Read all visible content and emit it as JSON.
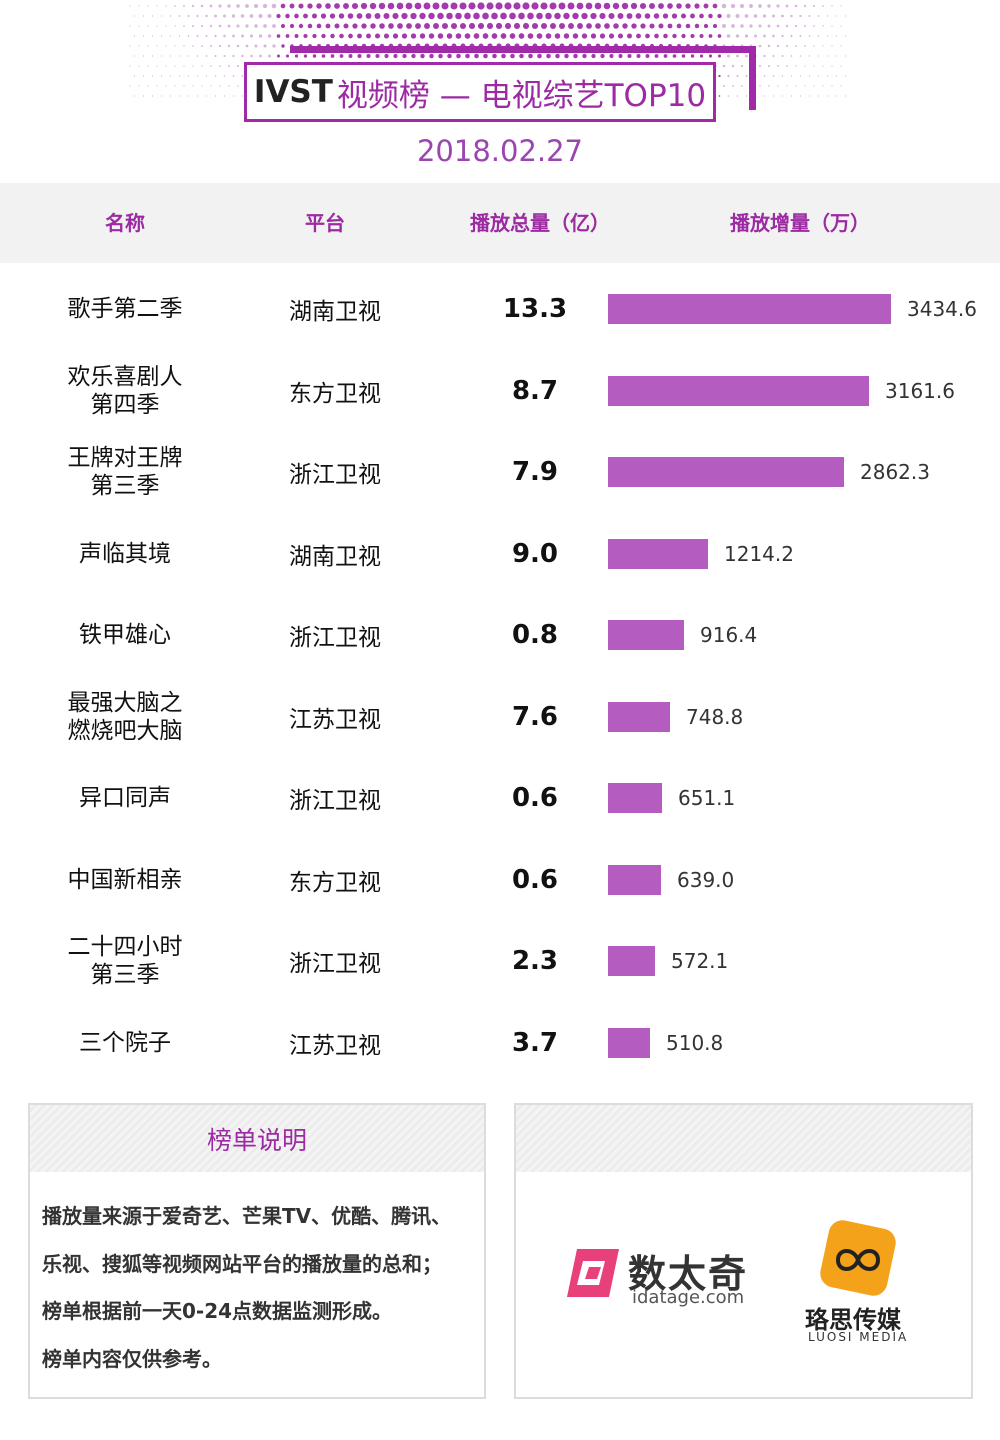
{
  "header": {
    "brand": "IVST",
    "title": "视频榜 — 电视综艺TOP10",
    "date": "2018.02.27"
  },
  "columns": {
    "name": "名称",
    "platform": "平台",
    "total": "播放总量（亿）",
    "increase": "播放增量（万）"
  },
  "chart_data": {
    "type": "bar",
    "title": "",
    "xlabel": "",
    "ylabel": "",
    "categories": [
      "歌手第二季",
      "欢乐喜剧人第四季",
      "王牌对王牌第三季",
      "声临其境",
      "铁甲雄心",
      "最强大脑之燃烧吧大脑",
      "异口同声",
      "中国新相亲",
      "二十四小时第三季",
      "三个院子"
    ],
    "rows": [
      {
        "name": "歌手第二季",
        "platform": "湖南卫视",
        "total": "13.3",
        "increase": 3434.6,
        "increase_label": "3434.6"
      },
      {
        "name": "欢乐喜剧人第四季",
        "platform": "东方卫视",
        "total": "8.7",
        "increase": 3161.6,
        "increase_label": "3161.6"
      },
      {
        "name": "王牌对王牌第三季",
        "platform": "浙江卫视",
        "total": "7.9",
        "increase": 2862.3,
        "increase_label": "2862.3"
      },
      {
        "name": "声临其境",
        "platform": "湖南卫视",
        "total": "9.0",
        "increase": 1214.2,
        "increase_label": "1214.2"
      },
      {
        "name": "铁甲雄心",
        "platform": "浙江卫视",
        "total": "0.8",
        "increase": 916.4,
        "increase_label": "916.4"
      },
      {
        "name": "最强大脑之燃烧吧大脑",
        "platform": "江苏卫视",
        "total": "7.6",
        "increase": 748.8,
        "increase_label": "748.8"
      },
      {
        "name": "异口同声",
        "platform": "浙江卫视",
        "total": "0.6",
        "increase": 651.1,
        "increase_label": "651.1"
      },
      {
        "name": "中国新相亲",
        "platform": "东方卫视",
        "total": "0.6",
        "increase": 639.0,
        "increase_label": "639.0"
      },
      {
        "name": "二十四小时第三季",
        "platform": "浙江卫视",
        "total": "2.3",
        "increase": 572.1,
        "increase_label": "572.1"
      },
      {
        "name": "三个院子",
        "platform": "江苏卫视",
        "total": "3.7",
        "increase": 510.8,
        "increase_label": "510.8"
      }
    ],
    "values": [
      3434.6,
      3161.6,
      2862.3,
      1214.2,
      916.4,
      748.8,
      651.1,
      639.0,
      572.1,
      510.8
    ],
    "bar_color": "#b55cc1"
  },
  "notes": {
    "heading": "榜单说明",
    "lines": [
      "播放量来源于爱奇艺、芒果TV、优酷、腾讯、",
      "乐视、搜狐等视频网站平台的播放量的总和；",
      "榜单根据前一天0-24点数据监测形成。",
      "榜单内容仅供参考。"
    ]
  },
  "logos": {
    "idatage_name": "数太奇",
    "idatage_url": "idatage.com",
    "luosi_name": "珞思传媒",
    "luosi_sub": "LUOSI MEDIA"
  },
  "colors": {
    "accent": "#a02aa8",
    "bar": "#b55cc1",
    "header_band": "#f2f2f2"
  }
}
